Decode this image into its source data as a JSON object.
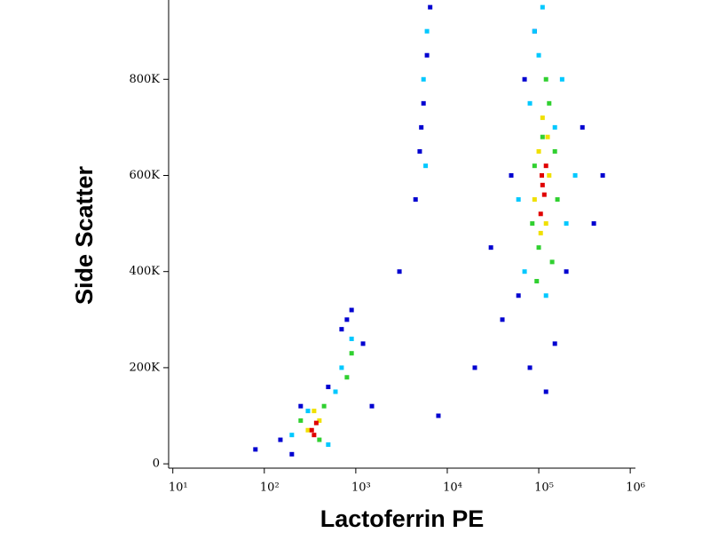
{
  "chart_data": {
    "type": "scatter",
    "xlabel": "Lactoferrin PE",
    "ylabel": "Side Scatter",
    "xscale": "log",
    "xlim": [
      9,
      1140000
    ],
    "xticks": [
      {
        "value": 10,
        "label": "10¹"
      },
      {
        "value": 100,
        "label": "10²"
      },
      {
        "value": 1000,
        "label": "10³"
      },
      {
        "value": 10000,
        "label": "10⁴"
      },
      {
        "value": 100000,
        "label": "10⁵"
      },
      {
        "value": 1000000,
        "label": "10⁶"
      }
    ],
    "ylim": [
      -9000,
      965000
    ],
    "yticks": [
      0,
      {
        "value": 200000,
        "label": "200K"
      },
      {
        "value": 400000,
        "label": "400K"
      },
      {
        "value": 600000,
        "label": "600K"
      },
      {
        "value": 800000,
        "label": "800K"
      }
    ],
    "series": [
      {
        "color": "#0000d0",
        "x": [
          80,
          150,
          200,
          250,
          500,
          800,
          1200,
          1500,
          900,
          700,
          3000,
          4500,
          5000,
          5500,
          6000,
          6500,
          5200,
          30000,
          40000,
          50000,
          60000,
          70000,
          80000,
          150000,
          200000,
          300000,
          400000,
          500000,
          90000,
          120000,
          20000,
          8000
        ],
        "y": [
          30000,
          50000,
          20000,
          120000,
          160000,
          300000,
          250000,
          120000,
          320000,
          280000,
          400000,
          550000,
          650000,
          750000,
          850000,
          950000,
          700000,
          450000,
          300000,
          600000,
          350000,
          800000,
          200000,
          250000,
          400000,
          700000,
          500000,
          600000,
          900000,
          150000,
          200000,
          100000
        ]
      },
      {
        "color": "#00c8ff",
        "x": [
          200,
          300,
          500,
          700,
          900,
          600,
          5500,
          6000,
          5800,
          70000,
          80000,
          100000,
          150000,
          200000,
          250000,
          120000,
          90000,
          180000,
          60000,
          110000
        ],
        "y": [
          60000,
          110000,
          40000,
          200000,
          260000,
          150000,
          800000,
          900000,
          620000,
          400000,
          750000,
          850000,
          700000,
          500000,
          600000,
          350000,
          900000,
          800000,
          550000,
          950000
        ]
      },
      {
        "color": "#30d030",
        "x": [
          250,
          400,
          450,
          800,
          900,
          85000,
          100000,
          130000,
          150000,
          160000,
          90000,
          120000,
          140000,
          110000,
          95000
        ],
        "y": [
          90000,
          50000,
          120000,
          180000,
          230000,
          500000,
          450000,
          750000,
          650000,
          550000,
          620000,
          800000,
          420000,
          680000,
          380000
        ]
      },
      {
        "color": "#f0e000",
        "x": [
          300,
          400,
          350,
          90000,
          100000,
          120000,
          130000,
          110000,
          105000,
          125000
        ],
        "y": [
          70000,
          90000,
          110000,
          550000,
          650000,
          500000,
          600000,
          720000,
          480000,
          680000
        ]
      },
      {
        "color": "#e00000",
        "x": [
          330,
          370,
          350,
          105000,
          110000,
          115000,
          120000,
          108000
        ],
        "y": [
          70000,
          85000,
          60000,
          520000,
          580000,
          560000,
          620000,
          600000
        ]
      }
    ]
  }
}
